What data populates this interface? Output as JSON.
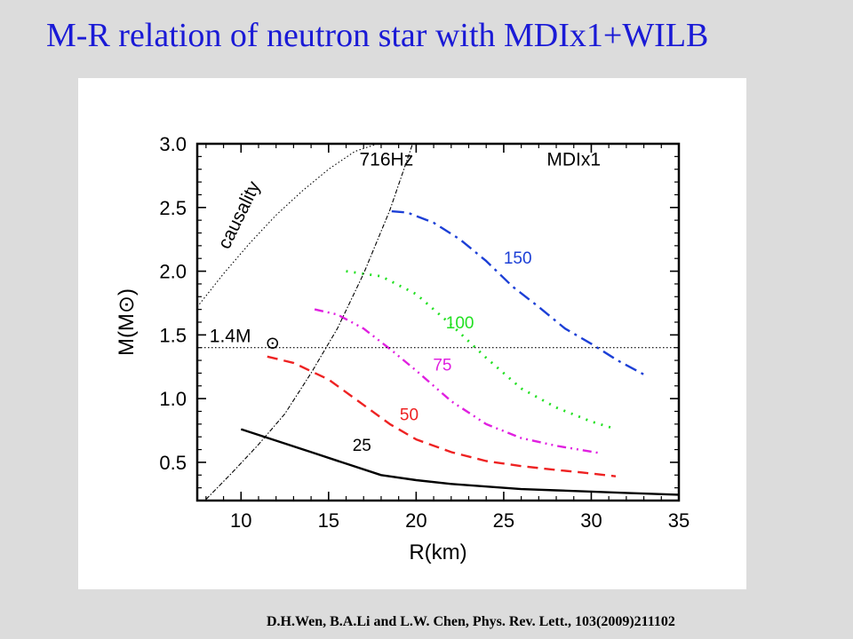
{
  "slide": {
    "title": "M-R relation of neutron star with MDIx1+WILB",
    "citation": "D.H.Wen, B.A.Li and L.W. Chen, Phys. Rev. Lett., 103(2009)211102"
  },
  "chart_data": {
    "type": "line",
    "title": "",
    "xlabel": "R(km)",
    "ylabel": "M(M⊙)",
    "xlim": [
      7.5,
      35
    ],
    "ylim": [
      0.2,
      3.0
    ],
    "x_ticks": [
      10,
      15,
      20,
      25,
      30,
      35
    ],
    "y_ticks": [
      0.5,
      1.0,
      1.5,
      2.0,
      2.5,
      3.0
    ],
    "x_tick_labels": [
      "10",
      "15",
      "20",
      "25",
      "30",
      "35"
    ],
    "y_tick_labels": [
      "0.5",
      "1.0",
      "1.5",
      "2.0",
      "2.5",
      "3.0"
    ],
    "grid": false,
    "annotations": {
      "model": "MDIx1",
      "causality": "causality",
      "spin_frequency": "716Hz",
      "reference_mass": "1.4M",
      "reference_mass_value": 1.4
    },
    "series": [
      {
        "name": "150",
        "color": "#1c3fd6",
        "dash": "dashdot",
        "x": [
          18.6,
          19.5,
          21,
          22.5,
          24,
          25.5,
          27,
          28.5,
          30,
          31.5,
          33
        ],
        "y": [
          2.47,
          2.46,
          2.38,
          2.25,
          2.08,
          1.88,
          1.72,
          1.55,
          1.43,
          1.3,
          1.19
        ]
      },
      {
        "name": "100",
        "color": "#22e022",
        "dash": "dotted",
        "x": [
          16,
          18,
          20,
          22,
          24,
          26,
          28,
          30,
          31.2
        ],
        "y": [
          2.0,
          1.96,
          1.82,
          1.58,
          1.32,
          1.08,
          0.93,
          0.82,
          0.77
        ]
      },
      {
        "name": "75",
        "color": "#e020e0",
        "dash": "dashdotdot",
        "x": [
          14.2,
          15.5,
          17,
          18.5,
          20,
          22,
          24,
          26,
          28,
          30.6
        ],
        "y": [
          1.7,
          1.66,
          1.55,
          1.39,
          1.22,
          0.98,
          0.8,
          0.69,
          0.63,
          0.57
        ]
      },
      {
        "name": "50",
        "color": "#ee2222",
        "dash": "dashed",
        "x": [
          11.5,
          13,
          15,
          17,
          18.5,
          20,
          22,
          24,
          26,
          28,
          29.5,
          31.4
        ],
        "y": [
          1.33,
          1.28,
          1.15,
          0.95,
          0.8,
          0.68,
          0.58,
          0.51,
          0.47,
          0.44,
          0.42,
          0.39
        ]
      },
      {
        "name": "25",
        "color": "#000000",
        "dash": "solid",
        "x": [
          10,
          12,
          14,
          16,
          18,
          20,
          22,
          24,
          26,
          28,
          30,
          32,
          35
        ],
        "y": [
          0.76,
          0.67,
          0.58,
          0.49,
          0.4,
          0.36,
          0.33,
          0.31,
          0.29,
          0.28,
          0.27,
          0.26,
          0.245
        ]
      },
      {
        "name": "causality",
        "color": "#000000",
        "dash": "fine-dot",
        "x": [
          7.5,
          9,
          10.5,
          12,
          13.5,
          15,
          16.5,
          17.8
        ],
        "y": [
          1.72,
          1.98,
          2.22,
          2.44,
          2.63,
          2.8,
          2.94,
          3.0
        ]
      },
      {
        "name": "716Hz",
        "color": "#000000",
        "dash": "fine-dashdot",
        "x": [
          8,
          9.5,
          11,
          12.5,
          14,
          15.5,
          17,
          18.5,
          19.8
        ],
        "y": [
          0.21,
          0.42,
          0.64,
          0.88,
          1.2,
          1.55,
          1.98,
          2.48,
          3.0
        ]
      },
      {
        "name": "1.4M",
        "color": "#000000",
        "dash": "fine-dot",
        "x": [
          7.5,
          35
        ],
        "y": [
          1.4,
          1.4
        ]
      }
    ]
  }
}
